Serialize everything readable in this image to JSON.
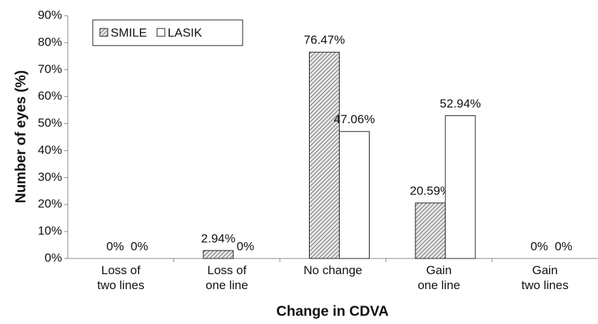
{
  "chart_data": {
    "type": "bar",
    "x_label": "Change in CDVA",
    "y_label": "Number of eyes (%)",
    "categories": [
      "Loss of\ntwo lines",
      "Loss of\none line",
      "No change",
      "Gain\none line",
      "Gain\ntwo lines"
    ],
    "series": [
      {
        "name": "SMILE",
        "color": "#555555",
        "pattern": "hatch",
        "values": [
          0,
          2.94,
          76.47,
          20.59,
          0
        ],
        "value_labels": [
          "0%",
          "2.94%",
          "76.47%",
          "20.59%",
          "0%"
        ]
      },
      {
        "name": "LASIK",
        "color": "#ffffff",
        "pattern": "none",
        "values": [
          0,
          0,
          47.06,
          52.94,
          0
        ],
        "value_labels": [
          "0%",
          "0%",
          "47.06%",
          "52.94%",
          "0%"
        ]
      }
    ],
    "ylim": [
      0,
      90
    ],
    "yticks": [
      {
        "value": 0,
        "label": "0%"
      },
      {
        "value": 10,
        "label": "10%"
      },
      {
        "value": 20,
        "label": "20%"
      },
      {
        "value": 30,
        "label": "30%"
      },
      {
        "value": 40,
        "label": "40%"
      },
      {
        "value": 50,
        "label": "50%"
      },
      {
        "value": 60,
        "label": "60%"
      },
      {
        "value": 70,
        "label": "70%"
      },
      {
        "value": 80,
        "label": "80%"
      },
      {
        "value": 90,
        "label": "90%"
      }
    ],
    "grid": false,
    "legend": "upper left"
  }
}
